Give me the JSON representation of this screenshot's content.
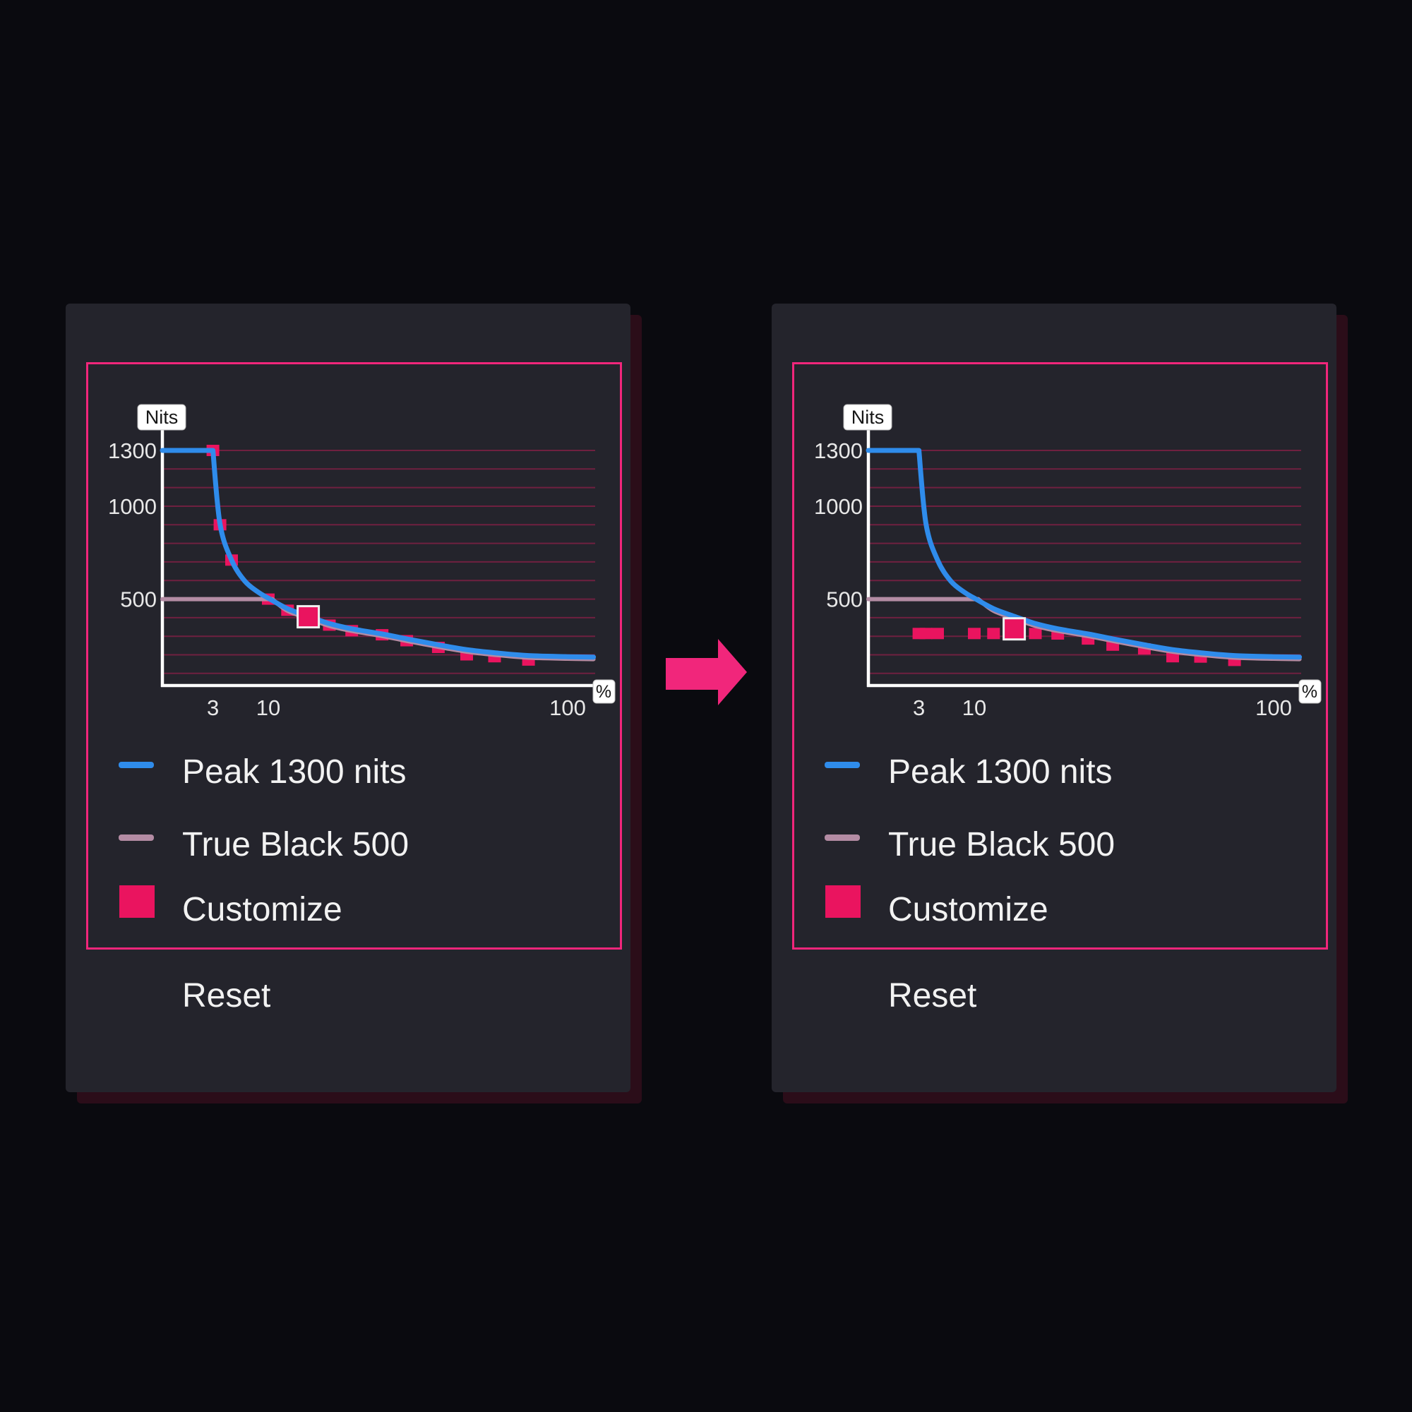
{
  "colors": {
    "background": "#0a0a0f",
    "panel": "#24242c",
    "panel_shadow": "#2b0d19",
    "accent_pink": "#f1267b",
    "marker_pink": "#ea145f",
    "blue": "#2f8ceb",
    "mauve": "#b48ca4",
    "grid": "#6f2040",
    "axis": "#ffffff",
    "text": "#f2f2f2",
    "tick_text": "#e8e8e8",
    "label_box_bg": "#ffffff",
    "label_box_border": "#bfbfbf",
    "label_box_text": "#161616"
  },
  "arrow": {
    "icon_name": "right-arrow-icon"
  },
  "panels": [
    {
      "reset_label": "Reset"
    },
    {
      "reset_label": "Reset"
    }
  ],
  "chart_data": [
    {
      "type": "line",
      "title": "",
      "xlabel": "%",
      "ylabel": "Nits",
      "x_scale": "log",
      "x_ticks": [
        3,
        10,
        100
      ],
      "y_ticks": [
        1300,
        1000,
        500
      ],
      "gridlines_y": [
        100,
        200,
        300,
        400,
        500,
        600,
        700,
        800,
        900,
        1000,
        1100,
        1200,
        1300
      ],
      "xlim": [
        1,
        122
      ],
      "ylim": [
        0,
        1350
      ],
      "grid": true,
      "legend_position": "bottom-left",
      "series": [
        {
          "name": "Peak 1300 nits",
          "kind": "curve",
          "color_key": "blue",
          "corner_index": 1,
          "points": [
            [
              1,
              1300
            ],
            [
              3,
              1300
            ],
            [
              3.5,
              905
            ],
            [
              4.5,
              710
            ],
            [
              6,
              597
            ],
            [
              8,
              538
            ],
            [
              10,
              505
            ],
            [
              11.6,
              448
            ],
            [
              13.6,
              407
            ],
            [
              16,
              368
            ],
            [
              19,
              340
            ],
            [
              24,
              312
            ],
            [
              29,
              286
            ],
            [
              37,
              254
            ],
            [
              46,
              228
            ],
            [
              57,
              211
            ],
            [
              74,
              196
            ],
            [
              100,
              190
            ],
            [
              122,
              188
            ]
          ]
        },
        {
          "name": "True Black 500",
          "kind": "curve",
          "color_key": "mauve",
          "corner_index": 1,
          "points": [
            [
              1,
              500
            ],
            [
              10.3,
              500
            ],
            [
              11.6,
              437
            ],
            [
              13.6,
              396
            ],
            [
              16,
              356
            ],
            [
              19,
              329
            ],
            [
              24,
              301
            ],
            [
              29,
              275
            ],
            [
              37,
              243
            ],
            [
              46,
              217
            ],
            [
              57,
              200
            ],
            [
              74,
              185
            ],
            [
              100,
              179
            ],
            [
              122,
              177
            ]
          ]
        },
        {
          "name": "Customize",
          "kind": "markers",
          "color_key": "marker_pink",
          "marker": "square",
          "selected_index": 5,
          "points": [
            [
              3,
              1300
            ],
            [
              3.5,
              900
            ],
            [
              4.5,
              710
            ],
            [
              10,
              500
            ],
            [
              11.6,
              440
            ],
            [
              13.6,
              405
            ],
            [
              16,
              360
            ],
            [
              19,
              330
            ],
            [
              24,
              308
            ],
            [
              29,
              276
            ],
            [
              37,
              240
            ],
            [
              46,
              200
            ],
            [
              57,
              190
            ],
            [
              74,
              172
            ]
          ]
        }
      ]
    },
    {
      "type": "line",
      "title": "",
      "xlabel": "%",
      "ylabel": "Nits",
      "x_scale": "log",
      "x_ticks": [
        3,
        10,
        100
      ],
      "y_ticks": [
        1300,
        1000,
        500
      ],
      "gridlines_y": [
        100,
        200,
        300,
        400,
        500,
        600,
        700,
        800,
        900,
        1000,
        1100,
        1200,
        1300
      ],
      "xlim": [
        1,
        122
      ],
      "ylim": [
        0,
        1350
      ],
      "grid": true,
      "legend_position": "bottom-left",
      "series": [
        {
          "name": "Peak 1300 nits",
          "kind": "curve",
          "color_key": "blue",
          "corner_index": 1,
          "points": [
            [
              1,
              1300
            ],
            [
              3,
              1300
            ],
            [
              3.5,
              905
            ],
            [
              4.5,
              710
            ],
            [
              6,
              597
            ],
            [
              8,
              538
            ],
            [
              10,
              505
            ],
            [
              11.6,
              448
            ],
            [
              13.6,
              407
            ],
            [
              16,
              368
            ],
            [
              19,
              340
            ],
            [
              24,
              312
            ],
            [
              29,
              286
            ],
            [
              37,
              254
            ],
            [
              46,
              228
            ],
            [
              57,
              211
            ],
            [
              74,
              196
            ],
            [
              100,
              190
            ],
            [
              122,
              188
            ]
          ]
        },
        {
          "name": "True Black 500",
          "kind": "curve",
          "color_key": "mauve",
          "corner_index": 1,
          "points": [
            [
              1,
              500
            ],
            [
              10.3,
              500
            ],
            [
              11.6,
              437
            ],
            [
              13.6,
              396
            ],
            [
              16,
              356
            ],
            [
              19,
              329
            ],
            [
              24,
              301
            ],
            [
              29,
              275
            ],
            [
              37,
              243
            ],
            [
              46,
              217
            ],
            [
              57,
              200
            ],
            [
              74,
              185
            ],
            [
              100,
              179
            ],
            [
              122,
              177
            ]
          ]
        },
        {
          "name": "Customize",
          "kind": "markers",
          "color_key": "marker_pink",
          "marker": "square",
          "selected_index": 5,
          "points": [
            [
              3,
              315
            ],
            [
              3.5,
              315
            ],
            [
              4.5,
              315
            ],
            [
              10,
              315
            ],
            [
              11.6,
              315
            ],
            [
              13.6,
              340
            ],
            [
              16,
              315
            ],
            [
              19,
              312
            ],
            [
              24,
              285
            ],
            [
              29,
              252
            ],
            [
              37,
              232
            ],
            [
              46,
              190
            ],
            [
              57,
              188
            ],
            [
              74,
              170
            ]
          ]
        }
      ]
    }
  ]
}
